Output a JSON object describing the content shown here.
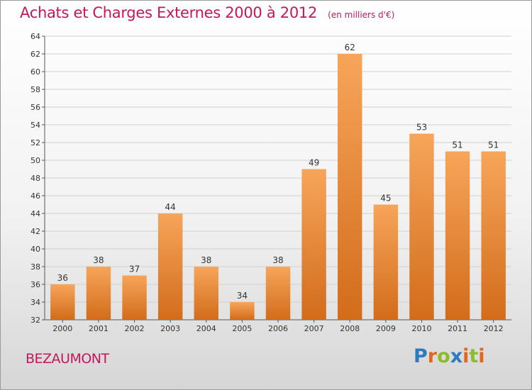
{
  "header": {
    "title": "Achats et Charges Externes 2000 à 2012",
    "unit": "(en milliers d'€)"
  },
  "footer": {
    "commune": "BEZAUMONT",
    "logo": "Proxiti"
  },
  "colors": {
    "bar_top": "#f7a55a",
    "bar_bottom": "#d26c1b",
    "title": "#c2185b",
    "grid": "#d0d0d0"
  },
  "chart_data": {
    "type": "bar",
    "title": "Achats et Charges Externes 2000 à 2012",
    "subtitle": "(en milliers d'€)",
    "categories": [
      "2000",
      "2001",
      "2002",
      "2003",
      "2004",
      "2005",
      "2006",
      "2007",
      "2008",
      "2009",
      "2010",
      "2011",
      "2012"
    ],
    "values": [
      36,
      38,
      37,
      44,
      38,
      34,
      38,
      49,
      62,
      45,
      53,
      51,
      51
    ],
    "xlabel": "",
    "ylabel": "",
    "ylim": [
      32,
      64
    ],
    "yticks": [
      32,
      34,
      36,
      38,
      40,
      42,
      44,
      46,
      48,
      50,
      52,
      54,
      56,
      58,
      60,
      62,
      64
    ],
    "grid": true,
    "data_labels": true
  }
}
